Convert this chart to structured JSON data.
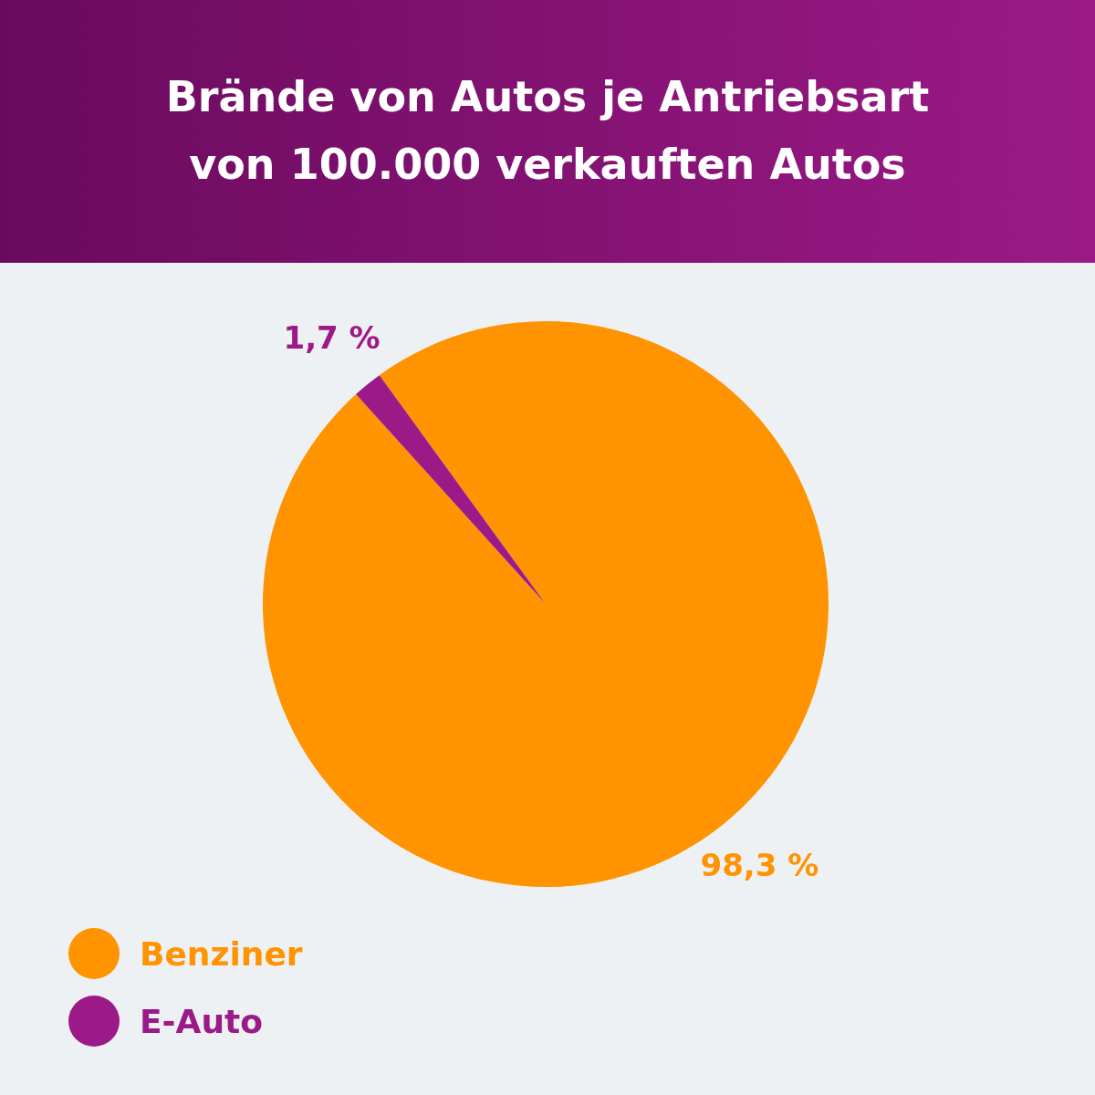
{
  "chart_data": {
    "type": "pie",
    "title": "Brände von Autos je Antriebsart von 100.000 verkauften Autos",
    "categories": [
      "Benziner",
      "E-Auto"
    ],
    "values": [
      98.3,
      1.7
    ],
    "colors": [
      "#ff9300",
      "#9c1a87"
    ],
    "value_labels": [
      "98,3 %",
      "1,7 %"
    ],
    "legend": "bottom left"
  }
}
